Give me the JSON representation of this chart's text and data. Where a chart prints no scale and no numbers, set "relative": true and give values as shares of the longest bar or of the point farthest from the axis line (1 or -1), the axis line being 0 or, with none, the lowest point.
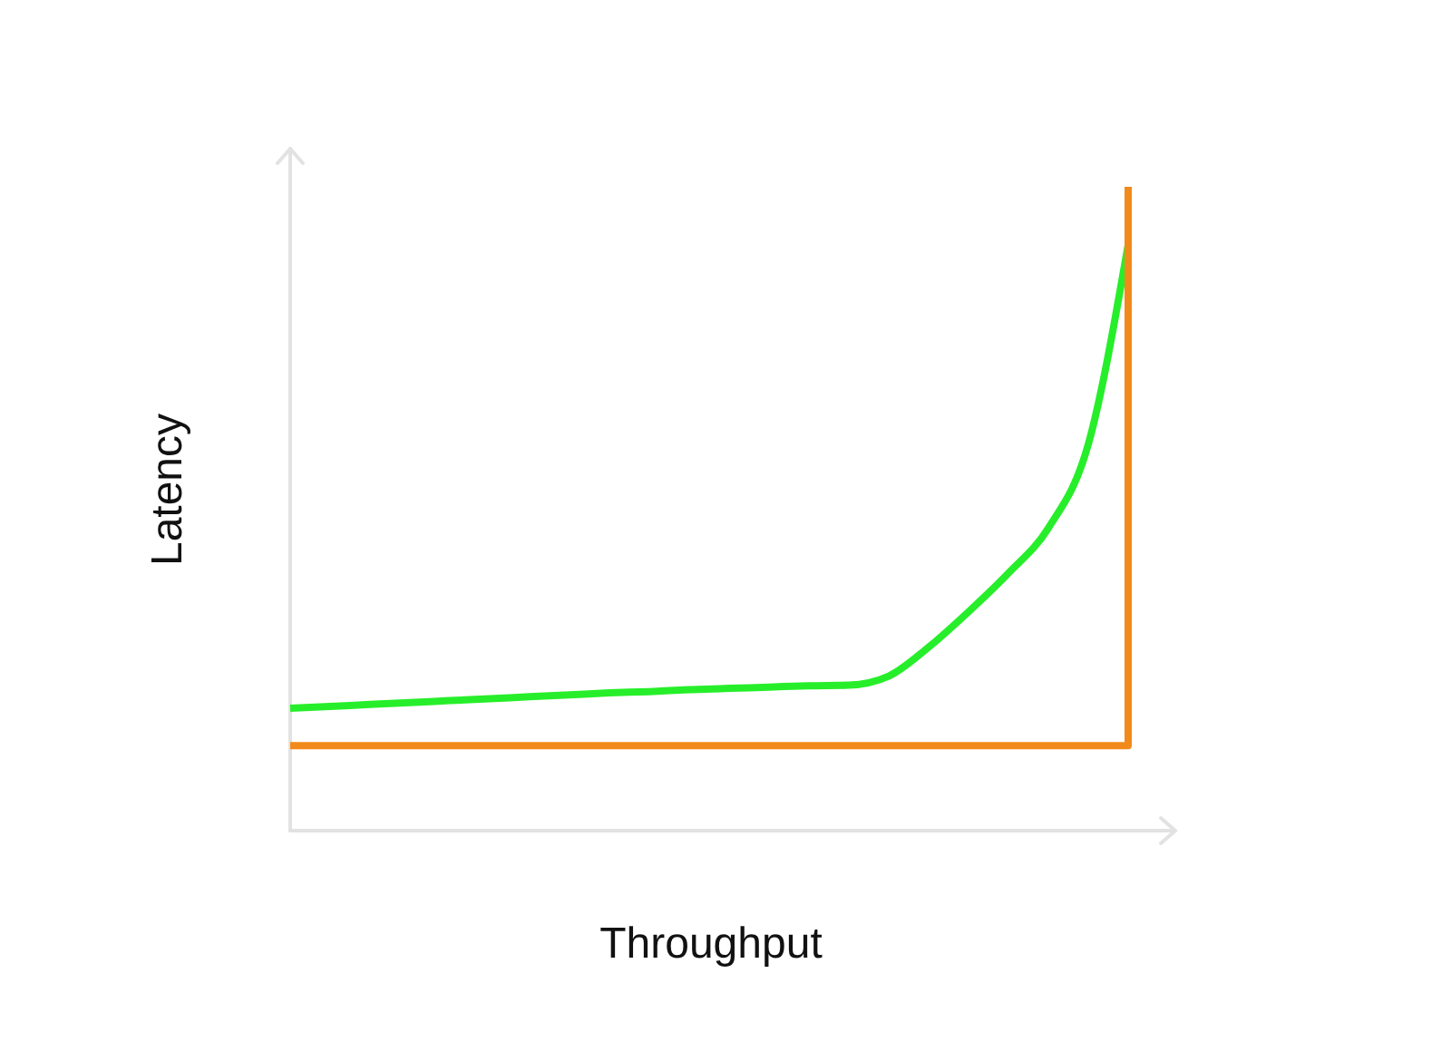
{
  "chart_data": {
    "type": "line",
    "xlabel": "Throughput",
    "ylabel": "Latency",
    "relative": true,
    "categories": [
      null,
      null,
      null,
      null,
      null,
      null,
      null,
      null,
      null,
      null,
      null,
      null,
      null,
      null,
      null,
      null,
      null,
      null,
      null,
      null,
      null,
      null
    ],
    "series": [
      {
        "type": "line",
        "color": "#27ee2a",
        "values": [
          0.19,
          0.193,
          0.196,
          0.199,
          0.202,
          0.205,
          0.208,
          0.211,
          0.214,
          0.216,
          0.219,
          0.221,
          0.223,
          0.225,
          0.226,
          0.24,
          0.285,
          0.34,
          0.4,
          0.47,
          0.6,
          0.91
        ]
      },
      {
        "type": "step",
        "color": "#f28a1b",
        "values": [
          0.132,
          0.132,
          0.132,
          0.132,
          0.132,
          0.132,
          0.132,
          0.132,
          0.132,
          0.132,
          0.132,
          0.132,
          0.132,
          0.132,
          0.132,
          0.132,
          0.132,
          0.132,
          0.132,
          0.132,
          0.132,
          1
        ]
      }
    ]
  }
}
